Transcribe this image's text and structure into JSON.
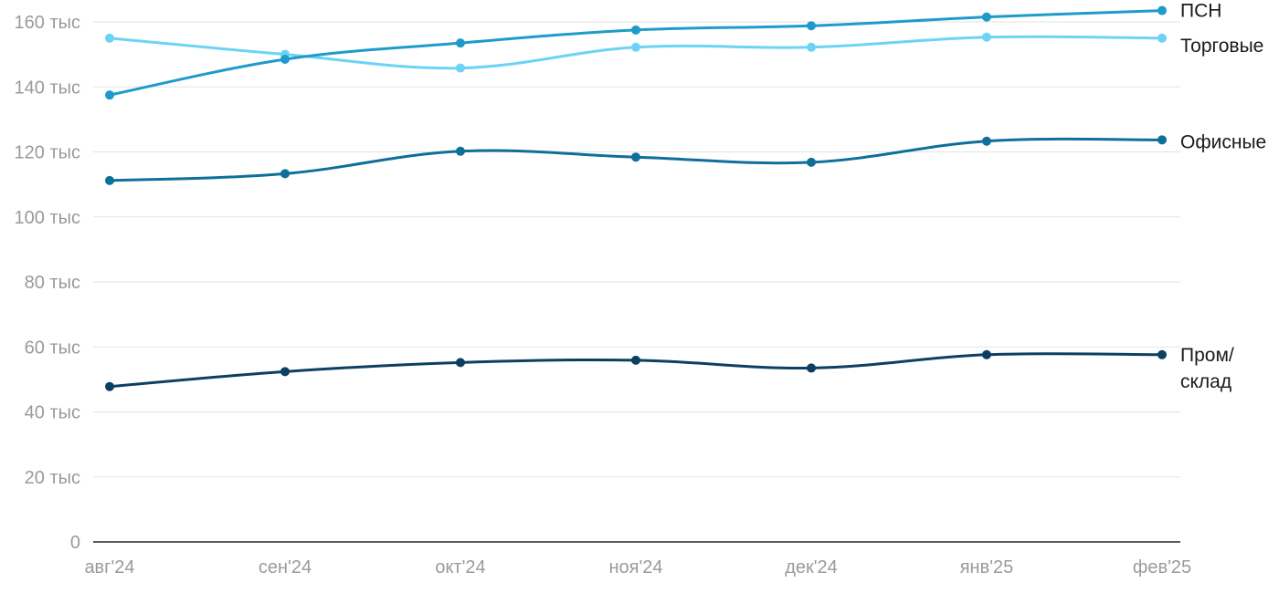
{
  "chart_data": {
    "type": "line",
    "categories": [
      "авг'24",
      "сен'24",
      "окт'24",
      "ноя'24",
      "дек'24",
      "янв'25",
      "фев'25"
    ],
    "y_ticks": [
      {
        "value": 0,
        "label": "0"
      },
      {
        "value": 20000,
        "label": "20 тыс"
      },
      {
        "value": 40000,
        "label": "40 тыс"
      },
      {
        "value": 60000,
        "label": "60 тыс"
      },
      {
        "value": 80000,
        "label": "80 тыс"
      },
      {
        "value": 100000,
        "label": "100 тыс"
      },
      {
        "value": 120000,
        "label": "120 тыс"
      },
      {
        "value": 140000,
        "label": "140 тыс"
      },
      {
        "value": 160000,
        "label": "160 тыс"
      }
    ],
    "ylim": [
      0,
      160000
    ],
    "grid": true,
    "series": [
      {
        "name": "ПСН",
        "label_lines": [
          "ПСН"
        ],
        "color": "#1f9bcb",
        "values": [
          137500,
          148500,
          153500,
          157500,
          158800,
          161500,
          163500
        ]
      },
      {
        "name": "Торговые",
        "label_lines": [
          "Торговые"
        ],
        "color": "#6dd3f5",
        "values": [
          155000,
          150000,
          145800,
          152200,
          152200,
          155300,
          155000
        ]
      },
      {
        "name": "Офисные",
        "label_lines": [
          "Офисные"
        ],
        "color": "#0e6f99",
        "values": [
          111200,
          113300,
          120200,
          118400,
          116800,
          123300,
          123700
        ]
      },
      {
        "name": "Пром/склад",
        "label_lines": [
          "Пром/",
          "склад"
        ],
        "color": "#0d3f61",
        "values": [
          47800,
          52400,
          55200,
          55900,
          53500,
          57600,
          57600
        ]
      }
    ]
  }
}
